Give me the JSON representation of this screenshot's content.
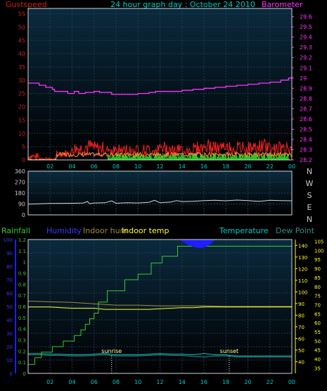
{
  "header": {
    "left_label": "Gustspeed",
    "title": "24 hour graph day : October 24 2010",
    "right_label": "Barometer"
  },
  "colors": {
    "bg": "#000000",
    "panel_top": "#0b2a3e",
    "panel_bottom": "#000000",
    "grid": "#1f3c55",
    "border": "#cfd6dc",
    "gust": "#ff2020",
    "avg_wind": "#ff8a3c",
    "gust_green": "#22cc22",
    "baro": "#ff33ff",
    "dir": "#d8d8d8",
    "rain": "#33cc33",
    "humidity": "#1e1eff",
    "humidity_label": "#3a3aff",
    "indoor_hum": "#a08a40",
    "indoor_temp": "#ffff33",
    "temperature": "#00cccc",
    "dewpoint": "#2f8f8f",
    "time_text": "#00cccc",
    "sun": "#ffff99"
  },
  "chart_data": [
    {
      "type": "line",
      "name": "wind_barometer",
      "x_ticks": [
        "02",
        "04",
        "06",
        "08",
        "10",
        "12",
        "14",
        "16",
        "18",
        "20",
        "22",
        "00"
      ],
      "y_left_ticks": [
        "0",
        "5",
        "10",
        "15",
        "20",
        "25",
        "30",
        "35",
        "40",
        "45",
        "50",
        "55"
      ],
      "y_right_ticks": [
        "28.2",
        "28.3",
        "28.4",
        "28.5",
        "28.6",
        "28.7",
        "28.8",
        "28.9",
        "29",
        "29.1",
        "29.2",
        "29.3",
        "29.4",
        "29.5",
        "29.6"
      ],
      "ylim_left": [
        0,
        57
      ],
      "ylim_right": [
        28.2,
        29.68
      ],
      "xlim": [
        0,
        24
      ],
      "series": [
        {
          "key": "barometer",
          "axis": "right",
          "x": [
            0,
            1,
            1.6,
            2.2,
            2.4,
            3.2,
            3.6,
            4.2,
            4.6,
            5.2,
            6.0,
            6.5,
            7.0,
            7.6,
            8.0,
            9.0,
            10.0,
            11.0,
            11.6,
            12.0,
            12.4,
            13.0,
            14.0,
            15.0,
            16.0,
            17.0,
            18.0,
            19.0,
            20.0,
            21.0,
            22.0,
            23.0,
            23.7,
            24
          ],
          "y": [
            28.95,
            28.93,
            28.91,
            28.89,
            28.87,
            28.87,
            28.85,
            28.87,
            28.85,
            28.86,
            28.87,
            28.86,
            28.86,
            28.84,
            28.84,
            28.84,
            28.85,
            28.86,
            28.87,
            28.87,
            28.87,
            28.87,
            28.88,
            28.89,
            28.9,
            28.91,
            28.92,
            28.93,
            28.94,
            28.95,
            28.96,
            28.98,
            29.0,
            29.02
          ]
        },
        {
          "key": "gust",
          "axis": "left",
          "hour_max": [
            3,
            8,
            4,
            4,
            7,
            8,
            7,
            6,
            6,
            6,
            6,
            6,
            7,
            6,
            6,
            7,
            8,
            7,
            7,
            7,
            7,
            8,
            7,
            7
          ]
        }
      ]
    },
    {
      "type": "line",
      "name": "wind_direction",
      "y_ticks": [
        "0",
        "90",
        "180",
        "270",
        "360"
      ],
      "ylim": [
        0,
        360
      ],
      "xlim": [
        0,
        24
      ],
      "compass": [
        "N",
        "W",
        "S",
        "E",
        "N"
      ],
      "series": [
        {
          "key": "direction",
          "x": [
            0,
            1,
            2,
            3,
            4,
            5,
            5.4,
            5.6,
            6,
            7,
            7.6,
            8,
            9,
            10,
            11,
            11.5,
            12,
            13,
            13.5,
            14,
            15,
            16,
            17,
            18,
            19,
            20,
            21,
            22,
            23,
            24
          ],
          "y": [
            88,
            92,
            94,
            95,
            96,
            98,
            110,
            92,
            98,
            100,
            115,
            96,
            100,
            98,
            104,
            120,
            100,
            106,
            118,
            110,
            112,
            118,
            120,
            116,
            122,
            118,
            112,
            120,
            118,
            116
          ]
        }
      ]
    },
    {
      "type": "line",
      "name": "rain_temp_humidity",
      "labels": {
        "rainfall": "Rainfall",
        "humidity": "Humidity",
        "indoor_hum": "Indoor hum",
        "indoor_temp": "Indoor temp",
        "temperature": "Temperature",
        "dewpoint": "Dew Point"
      },
      "x_ticks": [
        "02",
        "04",
        "06",
        "08",
        "10",
        "12",
        "14",
        "16",
        "18",
        "20",
        "22",
        "00"
      ],
      "humidity_ticks": [
        "0",
        "10",
        "20",
        "30",
        "40",
        "50",
        "60",
        "70",
        "80",
        "90",
        "100"
      ],
      "rain_ticks": [
        "0",
        "0.1",
        "0.2",
        "0.3",
        "0.4",
        "0.5",
        "0.6",
        "0.7",
        "0.8",
        "0.9",
        "1",
        "1.1",
        "1.2"
      ],
      "temp_ticks": [
        "40",
        "50",
        "60",
        "70",
        "80",
        "90",
        "100",
        "110",
        "120",
        "130",
        "140"
      ],
      "temp2_ticks": [
        "35",
        "40",
        "45",
        "50",
        "55",
        "60",
        "65",
        "70",
        "75",
        "80",
        "85",
        "90",
        "95",
        "100",
        "105"
      ],
      "ylim_humidity": [
        0,
        100
      ],
      "ylim_rain": [
        0,
        1.2
      ],
      "ylim_temp": [
        30,
        145
      ],
      "xlim": [
        0,
        24
      ],
      "sunrise": {
        "label": "sunrise",
        "hour": 7.6
      },
      "sunset": {
        "label": "sunset",
        "hour": 18.3
      },
      "series": [
        {
          "key": "rainfall",
          "x": [
            0,
            0.6,
            0.6,
            1.2,
            1.2,
            2.2,
            2.2,
            3.2,
            3.2,
            4.2,
            4.2,
            4.8,
            4.8,
            5.2,
            5.2,
            5.6,
            5.6,
            6.0,
            6.0,
            6.4,
            6.4,
            7.2,
            7.2,
            8.8,
            8.8,
            10.0,
            10.0,
            11.2,
            11.2,
            12.2,
            12.2,
            13.6,
            13.6,
            15.0,
            15.0,
            24
          ],
          "y": [
            0.08,
            0.08,
            0.14,
            0.14,
            0.19,
            0.19,
            0.24,
            0.24,
            0.29,
            0.29,
            0.34,
            0.34,
            0.39,
            0.39,
            0.44,
            0.44,
            0.49,
            0.49,
            0.54,
            0.54,
            0.64,
            0.64,
            0.74,
            0.74,
            0.84,
            0.84,
            0.89,
            0.89,
            0.99,
            0.99,
            1.05,
            1.05,
            1.14,
            1.14,
            1.14,
            1.14
          ]
        },
        {
          "key": "indoor_temp",
          "x": [
            0,
            1,
            2,
            3,
            4,
            5,
            6,
            7,
            8,
            9,
            10,
            11,
            12,
            13,
            14,
            15,
            16,
            17,
            18,
            19,
            20,
            21,
            22,
            23,
            24
          ],
          "y": [
            87,
            87,
            87,
            86.5,
            86,
            86,
            86,
            85,
            85,
            85,
            85,
            85,
            85.5,
            86,
            86.5,
            86.5,
            87,
            87,
            87,
            87,
            87,
            87,
            87,
            87,
            87
          ]
        },
        {
          "key": "indoor_hum",
          "x": [
            0,
            2,
            4,
            6,
            8,
            10,
            12,
            14,
            16,
            18,
            20,
            22,
            24
          ],
          "y": [
            54,
            53.5,
            53,
            52,
            51,
            51,
            50.5,
            50.5,
            50.5,
            50,
            50,
            50,
            50
          ]
        },
        {
          "key": "temperature",
          "x": [
            0,
            1,
            2,
            3,
            4,
            5,
            6,
            7,
            8,
            9,
            10,
            11,
            12,
            13,
            14,
            15,
            16,
            17,
            18,
            19,
            20,
            21,
            22,
            23,
            24
          ],
          "y": [
            47,
            47,
            46.5,
            46.5,
            46,
            46,
            46.5,
            47,
            46,
            46,
            46,
            46.5,
            47,
            46.5,
            46.5,
            46,
            47,
            46,
            46,
            45,
            45,
            45,
            45,
            45,
            45
          ]
        },
        {
          "key": "dewpoint",
          "x": [
            0,
            1,
            2,
            3,
            4,
            5,
            6,
            7,
            8,
            9,
            10,
            11,
            12,
            13,
            14,
            15,
            16,
            17,
            18,
            19,
            20,
            21,
            22,
            23,
            24
          ],
          "y": [
            46,
            46,
            45.5,
            45.5,
            45,
            45,
            45.5,
            46,
            45,
            45,
            45,
            45.5,
            46,
            45.5,
            45.5,
            44.5,
            44,
            45,
            45,
            44,
            44,
            44,
            44,
            44,
            44
          ]
        },
        {
          "key": "humidity",
          "x": [
            13.8,
            14.2,
            14.6,
            15,
            15.4,
            15.8,
            16.2,
            16.6,
            17
          ],
          "y": [
            100,
            98,
            96,
            95,
            94,
            94,
            95,
            97,
            100
          ]
        }
      ]
    }
  ]
}
